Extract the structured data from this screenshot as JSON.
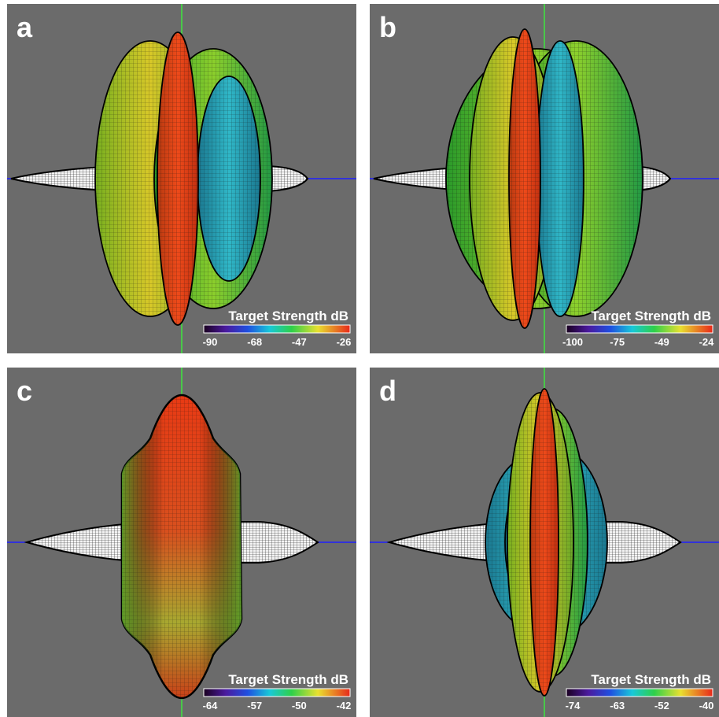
{
  "panels": [
    {
      "label": "a",
      "colorbar": {
        "title": "Target Strength dB",
        "ticks": [
          -90,
          -68,
          -47,
          -26
        ]
      }
    },
    {
      "label": "b",
      "colorbar": {
        "title": "Target Strength dB",
        "ticks": [
          -100,
          -75,
          -49,
          -24
        ]
      }
    },
    {
      "label": "c",
      "colorbar": {
        "title": "Target Strength dB",
        "ticks": [
          -64,
          -57,
          -50,
          -42
        ]
      }
    },
    {
      "label": "d",
      "colorbar": {
        "title": "Target Strength dB",
        "ticks": [
          -74,
          -63,
          -52,
          -40
        ]
      }
    }
  ]
}
